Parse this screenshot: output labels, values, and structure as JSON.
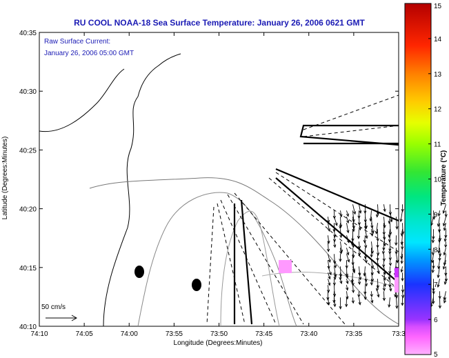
{
  "chart_data": {
    "type": "vector-field",
    "title": "RU COOL  NOAA-18  Sea Surface Temperature:  January 26, 2006 0621 GMT",
    "annotation_lines": [
      "Raw Surface Current:",
      "January 26, 2006 05:00 GMT"
    ],
    "xlabel": "Longitude (Degrees:Minutes)",
    "ylabel": "Latitude (Degrees:Minutes)",
    "x_ticks": [
      "74:10",
      "74:05",
      "74:00",
      "73:55",
      "73:50",
      "73:45",
      "73:40",
      "73:35",
      "73:3"
    ],
    "y_ticks": [
      "40:35",
      "40:30",
      "40:25",
      "40:20",
      "40:15",
      "40:10"
    ],
    "xlim_minutes_west": [
      70,
      30
    ],
    "ylim_minutes": [
      10,
      35
    ],
    "scale_arrow_label": "50 cm/s",
    "colorbar": {
      "label": "Temperature (°C)",
      "range": [
        5,
        15
      ],
      "ticks": [
        "5",
        "6",
        "7",
        "8",
        "9",
        "10",
        "11",
        "12",
        "13",
        "14",
        "15"
      ],
      "colors": [
        "#ff99ff",
        "#cc33ff",
        "#3333ff",
        "#0099ff",
        "#00cccc",
        "#00cc66",
        "#66cc00",
        "#cccc00",
        "#ff9900",
        "#ff3300",
        "#990000"
      ]
    },
    "sst_patches": [
      {
        "lon": 73.44,
        "lat": 40.256,
        "temp": 5.6
      },
      {
        "lon": 73.3,
        "lat": 40.245,
        "temp": 6.5
      },
      {
        "lon": 73.3,
        "lat": 40.233,
        "temp": 5.4
      }
    ],
    "current_region": {
      "lon_min": 73.58,
      "lon_max": 73.43,
      "lat_min": 40.21,
      "lat_max": 40.32
    }
  }
}
